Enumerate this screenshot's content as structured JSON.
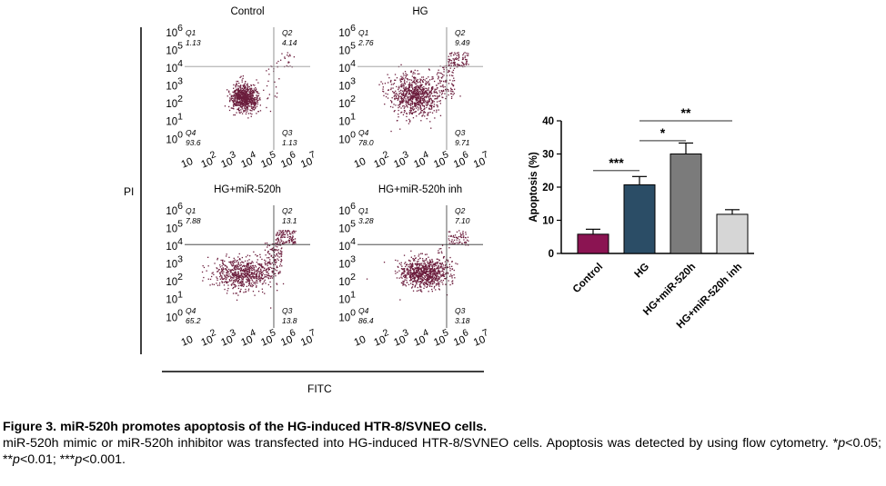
{
  "flow_panels": [
    {
      "title": "Control",
      "q1": "1.13",
      "q2": "4.14",
      "q3": "1.13",
      "q4": "93.6"
    },
    {
      "title": "HG",
      "q1": "2.76",
      "q2": "9.49",
      "q3": "9.71",
      "q4": "78.0"
    },
    {
      "title": "HG+miR-520h",
      "q1": "7.88",
      "q2": "13.1",
      "q3": "13.8",
      "q4": "65.2"
    },
    {
      "title": "HG+miR-520h inh",
      "q1": "3.28",
      "q2": "7.10",
      "q3": "3.18",
      "q4": "86.4"
    }
  ],
  "quadrant_labels": {
    "q1": "Q1",
    "q2": "Q2",
    "q3": "Q3",
    "q4": "Q4"
  },
  "log_ticks": [
    {
      "base": "10",
      "exp": ""
    },
    {
      "base": "10",
      "exp": "2"
    },
    {
      "base": "10",
      "exp": "3"
    },
    {
      "base": "10",
      "exp": "4"
    },
    {
      "base": "10",
      "exp": "5"
    },
    {
      "base": "10",
      "exp": "6"
    },
    {
      "base": "10",
      "exp": "7"
    }
  ],
  "y_ticks_top": [
    {
      "base": "10",
      "exp": "6"
    },
    {
      "base": "10",
      "exp": "5"
    },
    {
      "base": "10",
      "exp": "4"
    },
    {
      "base": "10",
      "exp": "3"
    },
    {
      "base": "10",
      "exp": "2"
    },
    {
      "base": "10",
      "exp": "1"
    },
    {
      "base": "10",
      "exp": "0"
    }
  ],
  "flow_axes": {
    "y_label": "PI",
    "x_label": "FITC"
  },
  "chart_data": {
    "type": "bar",
    "categories": [
      "Control",
      "HG",
      "HG+miR-520h",
      "HG+miR-520h inh"
    ],
    "values": [
      5.8,
      20.7,
      30.0,
      11.8
    ],
    "errors": [
      1.5,
      2.5,
      3.3,
      1.4
    ],
    "colors": [
      "#8b1452",
      "#2b4d66",
      "#7b7b7b",
      "#d6d6d6"
    ],
    "ylabel": "Apoptosis (%)",
    "ylim": [
      0,
      40
    ],
    "yticks": [
      0,
      10,
      20,
      30,
      40
    ],
    "significance": [
      {
        "from": 0,
        "to": 1,
        "label": "***",
        "y": 25.0
      },
      {
        "from": 1,
        "to": 2,
        "label": "*",
        "y": 34.0
      },
      {
        "from": 1,
        "to": 3,
        "label": "**",
        "y": 40.0
      }
    ]
  },
  "caption": {
    "title": "Figure 3. miR-520h promotes apoptosis of the HG-induced HTR-8/SVNEO cells.",
    "body_text": "miR-520h mimic or miR-520h inhibitor was transfected into HG-induced HTR-8/SVNEO cells. Apoptosis was detected by using flow cytometry. ",
    "p1_prefix": "*",
    "p1_italic": "p",
    "p1_suffix": "<0.05; ",
    "p2_prefix": "**",
    "p2_italic": "p",
    "p2_suffix": "<0.01; ",
    "p3_prefix": "***",
    "p3_italic": "p",
    "p3_suffix": "<0.001."
  }
}
